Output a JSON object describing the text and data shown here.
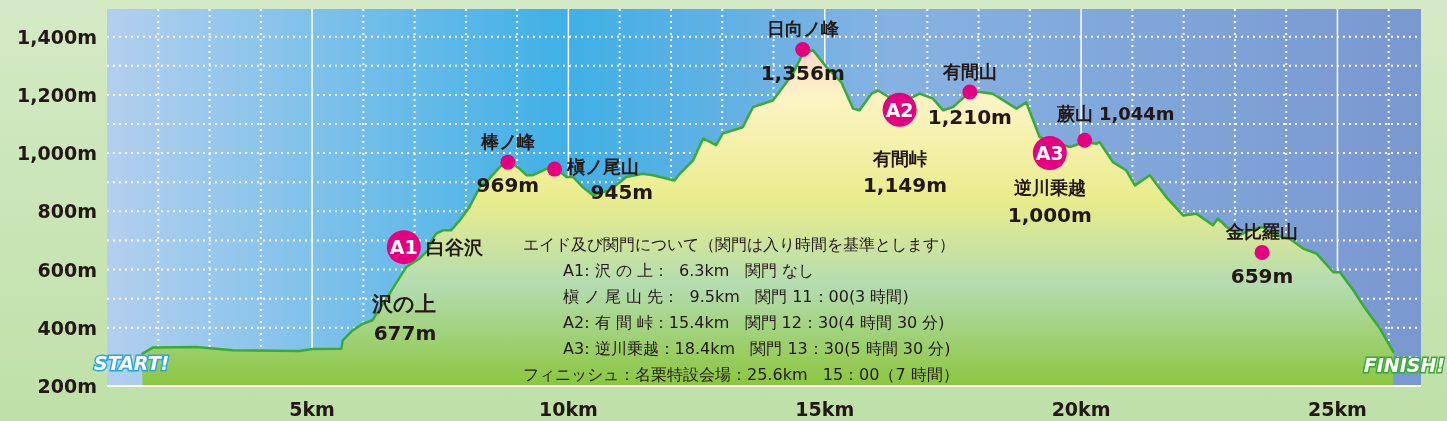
{
  "chart_data": {
    "type": "area",
    "xlim": [
      1.0,
      26.63
    ],
    "ylim": [
      200,
      1495
    ],
    "xticks": [
      {
        "value": 2,
        "label": null
      },
      {
        "value": 3,
        "label": null
      },
      {
        "value": 4,
        "label": null
      },
      {
        "value": 5,
        "label": "5km"
      },
      {
        "value": 6,
        "label": null
      },
      {
        "value": 7,
        "label": null
      },
      {
        "value": 8,
        "label": null
      },
      {
        "value": 9,
        "label": null
      },
      {
        "value": 10,
        "label": "10km"
      },
      {
        "value": 11,
        "label": null
      },
      {
        "value": 12,
        "label": null
      },
      {
        "value": 13,
        "label": null
      },
      {
        "value": 14,
        "label": null
      },
      {
        "value": 15,
        "label": "15km"
      },
      {
        "value": 16,
        "label": null
      },
      {
        "value": 17,
        "label": null
      },
      {
        "value": 18,
        "label": null
      },
      {
        "value": 19,
        "label": null
      },
      {
        "value": 20,
        "label": "20km"
      },
      {
        "value": 21,
        "label": null
      },
      {
        "value": 22,
        "label": null
      },
      {
        "value": 23,
        "label": null
      },
      {
        "value": 24,
        "label": null
      },
      {
        "value": 25,
        "label": "25km"
      },
      {
        "value": 26,
        "label": null
      }
    ],
    "yticks": [
      {
        "value": 200,
        "label": "200m"
      },
      {
        "value": 300,
        "label": null
      },
      {
        "value": 400,
        "label": "400m"
      },
      {
        "value": 500,
        "label": null
      },
      {
        "value": 600,
        "label": "600m"
      },
      {
        "value": 700,
        "label": null
      },
      {
        "value": 800,
        "label": "800m"
      },
      {
        "value": 900,
        "label": null
      },
      {
        "value": 1000,
        "label": "1,000m"
      },
      {
        "value": 1100,
        "label": null
      },
      {
        "value": 1200,
        "label": "1,200m"
      },
      {
        "value": 1300,
        "label": null
      },
      {
        "value": 1400,
        "label": "1,400m"
      }
    ],
    "grid": true,
    "series": [
      {
        "color": "#3aaa35",
        "x": [
          1.69,
          1.89,
          2.74,
          3.45,
          4.75,
          5.01,
          5.57,
          5.6,
          5.79,
          5.99,
          6.18,
          6.51,
          6.84,
          7.09,
          7.26,
          7.35,
          7.42,
          7.55,
          7.71,
          7.88,
          8.07,
          8.27,
          8.4,
          8.66,
          8.82,
          9.05,
          9.18,
          9.31,
          9.57,
          9.73,
          9.96,
          10.09,
          10.28,
          10.48,
          10.8,
          11.13,
          11.45,
          11.65,
          12.07,
          12.17,
          12.43,
          12.63,
          12.88,
          13.01,
          13.4,
          13.6,
          13.99,
          14.38,
          14.57,
          14.77,
          15.03,
          15.32,
          15.55,
          15.68,
          15.91,
          16.04,
          16.46,
          16.85,
          17.11,
          17.31,
          17.5,
          17.83,
          18.02,
          18.28,
          18.74,
          18.93,
          19.19,
          19.78,
          20.07,
          20.3,
          20.36,
          20.62,
          20.88,
          21.05,
          21.34,
          21.66,
          21.99,
          22.25,
          22.57,
          22.67,
          22.84,
          23.09,
          23.29,
          23.53,
          23.81,
          24.07,
          24.33,
          24.59,
          24.92,
          25.05,
          25.31,
          25.5,
          25.83,
          26.09
        ],
        "values": [
          311,
          332,
          334,
          323,
          320,
          327,
          328,
          357,
          391,
          414,
          426,
          517,
          609,
          637,
          666,
          706,
          723,
          735,
          735,
          769,
          815,
          883,
          901,
          952,
          975,
          946,
          924,
          924,
          946,
          952,
          918,
          918,
          883,
          855,
          872,
          918,
          929,
          924,
          906,
          929,
          975,
          1050,
          1027,
          1067,
          1089,
          1158,
          1181,
          1273,
          1341,
          1353,
          1296,
          1244,
          1153,
          1147,
          1204,
          1215,
          1170,
          1204,
          1187,
          1147,
          1158,
          1210,
          1210,
          1204,
          1153,
          1175,
          1055,
          1021,
          1038,
          1032,
          1038,
          969,
          941,
          889,
          924,
          849,
          786,
          792,
          752,
          775,
          746,
          718,
          735,
          746,
          718,
          706,
          672,
          655,
          591,
          591,
          529,
          477,
          397,
          317
        ]
      },
      {
        "type": "scatter",
        "color": "#e4007f",
        "marker": "circle",
        "x": [
          8.82,
          9.73,
          14.57,
          17.83,
          20.07,
          23.53
        ],
        "values": [
          969,
          945,
          1356,
          1210,
          1044,
          659
        ]
      },
      {
        "type": "scatter",
        "color": "#e4007f",
        "marker": "circle",
        "x": [
          6.79,
          16.46,
          19.39
        ],
        "values": [
          677,
          1149,
          1000
        ]
      }
    ],
    "annotations": [
      {
        "text": "A1",
        "x": 6.79,
        "y": 677
      },
      {
        "text": "白谷沢",
        "x": 6.79,
        "y": 677
      },
      {
        "text": "沢の上",
        "x": 6.79,
        "y": 677
      },
      "677m",
      {
        "text": "棒ノ峰",
        "x": 8.82,
        "y": 969
      },
      {
        "text": "969m",
        "x": 8.82,
        "y": 969
      },
      {
        "text": "槇ノ尾山",
        "x": 9.73,
        "y": 945
      },
      {
        "text": "945m",
        "x": 9.73,
        "y": 945
      },
      {
        "text": "日向ノ峰",
        "x": 14.57,
        "y": 1356
      },
      {
        "text": "1,356m",
        "x": 14.57,
        "y": 1356
      },
      {
        "text": "有間山",
        "x": 17.83,
        "y": 1210
      },
      {
        "text": "1,210m",
        "x": 17.83,
        "y": 1210
      },
      {
        "text": "A2",
        "x": 16.46,
        "y": 1149
      },
      {
        "text": "有間峠",
        "x": 16.46,
        "y": 1149
      },
      "1,149m",
      {
        "text": "蕨山 1,044m",
        "x": 20.07,
        "y": 1044
      },
      {
        "text": "A3",
        "x": 19.39,
        "y": 1000
      },
      {
        "text": "逆川乗越",
        "x": 19.39,
        "y": 1000
      },
      {
        "text": "1,000m",
        "x": 19.39,
        "y": 1000
      },
      {
        "text": "金比羅山",
        "x": 23.53,
        "y": 659
      },
      {
        "text": "659m",
        "x": 23.53,
        "y": 659
      },
      "START!",
      "FINISH!",
      "エイド及び関門について（関門は入り時間を基準とします）",
      "A1: 沢 の 上：  6.3km   関門 なし",
      "槇 ノ 尾 山 先：  9.5km   関門 11：00(3 時間)",
      "A2: 有 間 峠：15.4km   関門 12：30(4 時間 30 分)",
      "A3: 逆川乗越：18.4km   関門 13：30(5 時間 30 分)",
      "フィニッシュ：名栗特設会場：25.6km   15：00（7 時間）"
    ]
  }
}
